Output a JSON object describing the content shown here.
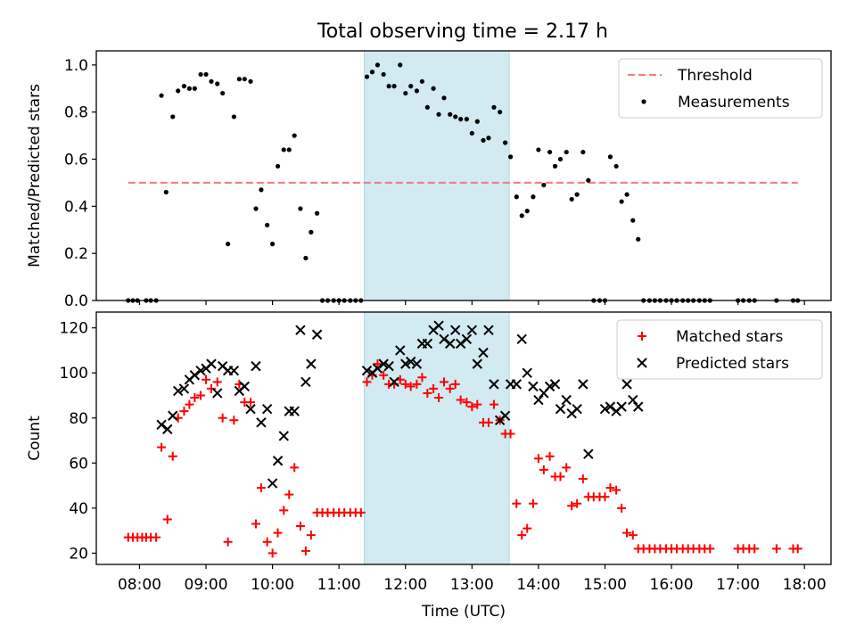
{
  "figure": {
    "title": "Total observing time = 2.17 h"
  },
  "colors": {
    "threshold": "#f08080",
    "measurements": "#000000",
    "matched": "#ff0000",
    "predicted": "#000000",
    "span_fill": "#add8e6"
  },
  "chart_data": [
    {
      "type": "scatter",
      "panel": "top",
      "ylabel": "Matched/Predicted stars",
      "xlabel": "",
      "xlim": [
        7.35,
        18.4
      ],
      "ylim": [
        0.0,
        1.06
      ],
      "yticks": [
        0.0,
        0.2,
        0.4,
        0.6,
        0.8,
        1.0
      ],
      "ytick_labels": [
        "0.0",
        "0.2",
        "0.4",
        "0.6",
        "0.8",
        "1.0"
      ],
      "xticks": [
        8,
        9,
        10,
        11,
        12,
        13,
        14,
        15,
        16,
        17,
        18
      ],
      "xtick_labels": [],
      "highlight_span": [
        11.38,
        13.56
      ],
      "legend_placement": "top-right",
      "series": [
        {
          "name": "Threshold",
          "kind": "dashed-line",
          "x": [
            7.83,
            17.9
          ],
          "y": [
            0.5,
            0.5
          ]
        },
        {
          "name": "Measurements",
          "kind": "dot",
          "x": [
            7.83,
            7.9,
            7.97,
            8.1,
            8.17,
            8.25,
            8.33,
            8.4,
            8.5,
            8.58,
            8.67,
            8.75,
            8.83,
            8.92,
            9.0,
            9.08,
            9.17,
            9.25,
            9.33,
            9.42,
            9.5,
            9.58,
            9.67,
            9.75,
            9.83,
            9.92,
            10.0,
            10.08,
            10.17,
            10.25,
            10.33,
            10.42,
            10.5,
            10.58,
            10.67,
            10.75,
            10.83,
            10.92,
            11.0,
            11.08,
            11.17,
            11.25,
            11.33,
            11.42,
            11.5,
            11.58,
            11.67,
            11.75,
            11.83,
            11.92,
            12.0,
            12.08,
            12.17,
            12.25,
            12.33,
            12.42,
            12.5,
            12.58,
            12.67,
            12.75,
            12.83,
            12.92,
            13.0,
            13.08,
            13.17,
            13.25,
            13.33,
            13.42,
            13.5,
            13.58,
            13.67,
            13.75,
            13.83,
            13.92,
            14.0,
            14.08,
            14.17,
            14.25,
            14.33,
            14.42,
            14.5,
            14.58,
            14.67,
            14.75,
            14.83,
            14.92,
            15.0,
            15.08,
            15.17,
            15.25,
            15.33,
            15.42,
            15.5,
            15.58,
            15.67,
            15.75,
            15.83,
            15.92,
            16.0,
            16.08,
            16.17,
            16.25,
            16.33,
            16.42,
            16.5,
            16.58,
            17.0,
            17.08,
            17.17,
            17.25,
            17.58,
            17.83,
            17.9
          ],
          "y": [
            0.0,
            0.0,
            0.0,
            0.0,
            0.0,
            0.0,
            0.87,
            0.46,
            0.78,
            0.89,
            0.91,
            0.9,
            0.9,
            0.96,
            0.96,
            0.93,
            0.92,
            0.88,
            0.24,
            0.78,
            0.94,
            0.94,
            0.93,
            0.39,
            0.47,
            0.32,
            0.24,
            0.57,
            0.64,
            0.64,
            0.7,
            0.39,
            0.18,
            0.29,
            0.37,
            0.0,
            0.0,
            0.0,
            0.0,
            0.0,
            0.0,
            0.0,
            0.0,
            0.95,
            0.97,
            1.0,
            0.96,
            0.91,
            0.91,
            1.0,
            0.88,
            0.91,
            0.89,
            0.93,
            0.82,
            0.9,
            0.79,
            0.86,
            0.79,
            0.78,
            0.77,
            0.77,
            0.71,
            0.76,
            0.68,
            0.69,
            0.82,
            0.8,
            0.67,
            0.61,
            0.44,
            0.36,
            0.38,
            0.44,
            0.64,
            0.49,
            0.63,
            0.57,
            0.6,
            0.63,
            0.43,
            0.45,
            0.63,
            0.51,
            0.0,
            0.0,
            0.0,
            0.61,
            0.57,
            0.42,
            0.45,
            0.34,
            0.26,
            0.0,
            0.0,
            0.0,
            0.0,
            0.0,
            0.0,
            0.0,
            0.0,
            0.0,
            0.0,
            0.0,
            0.0,
            0.0,
            0.0,
            0.0,
            0.0,
            0.0,
            0.0,
            0.0,
            0.0
          ]
        }
      ]
    },
    {
      "type": "scatter",
      "panel": "bottom",
      "ylabel": "Count",
      "xlabel": "Time (UTC)",
      "xlim": [
        7.35,
        18.4
      ],
      "ylim": [
        15,
        127
      ],
      "yticks": [
        20,
        40,
        60,
        80,
        100,
        120
      ],
      "ytick_labels": [
        "20",
        "40",
        "60",
        "80",
        "100",
        "120"
      ],
      "xticks": [
        8,
        9,
        10,
        11,
        12,
        13,
        14,
        15,
        16,
        17,
        18
      ],
      "xtick_labels": [
        "08:00",
        "09:00",
        "10:00",
        "11:00",
        "12:00",
        "13:00",
        "14:00",
        "15:00",
        "16:00",
        "17:00",
        "18:00"
      ],
      "highlight_span": [
        11.38,
        13.56
      ],
      "legend_placement": "top-right",
      "series": [
        {
          "name": "Matched stars",
          "kind": "plus",
          "x": [
            7.83,
            7.9,
            7.97,
            8.04,
            8.1,
            8.17,
            8.25,
            8.33,
            8.42,
            8.5,
            8.58,
            8.67,
            8.75,
            8.83,
            8.92,
            9.0,
            9.08,
            9.17,
            9.25,
            9.33,
            9.42,
            9.5,
            9.58,
            9.67,
            9.75,
            9.83,
            9.92,
            10.0,
            10.08,
            10.17,
            10.25,
            10.33,
            10.42,
            10.5,
            10.58,
            10.67,
            10.75,
            10.83,
            10.92,
            11.0,
            11.08,
            11.17,
            11.25,
            11.33,
            11.42,
            11.5,
            11.58,
            11.67,
            11.75,
            11.83,
            11.92,
            12.0,
            12.08,
            12.17,
            12.25,
            12.33,
            12.42,
            12.5,
            12.58,
            12.67,
            12.75,
            12.83,
            12.92,
            13.0,
            13.08,
            13.17,
            13.25,
            13.33,
            13.42,
            13.5,
            13.58,
            13.67,
            13.75,
            13.83,
            13.92,
            14.0,
            14.08,
            14.17,
            14.25,
            14.33,
            14.42,
            14.5,
            14.58,
            14.67,
            14.75,
            14.83,
            14.92,
            15.0,
            15.08,
            15.17,
            15.25,
            15.33,
            15.42,
            15.5,
            15.58,
            15.67,
            15.75,
            15.83,
            15.92,
            16.0,
            16.08,
            16.17,
            16.25,
            16.33,
            16.42,
            16.5,
            16.58,
            17.0,
            17.08,
            17.17,
            17.25,
            17.58,
            17.83,
            17.9
          ],
          "y": [
            27,
            27,
            27,
            27,
            27,
            27,
            27,
            67,
            35,
            63,
            80,
            83,
            86,
            89,
            90,
            97,
            93,
            96,
            80,
            25,
            79,
            95,
            87,
            87,
            33,
            49,
            25,
            20,
            29,
            39,
            46,
            58,
            32,
            21,
            28,
            38,
            38,
            38,
            38,
            38,
            38,
            38,
            38,
            38,
            96,
            99,
            104,
            99,
            95,
            95,
            97,
            95,
            94,
            95,
            98,
            91,
            93,
            89,
            96,
            93,
            95,
            88,
            87,
            85,
            86,
            78,
            78,
            86,
            79,
            73,
            73,
            42,
            28,
            31,
            42,
            62,
            57,
            63,
            54,
            54,
            58,
            41,
            42,
            53,
            45,
            45,
            45,
            45,
            49,
            48,
            40,
            29,
            28,
            22,
            22,
            22,
            22,
            22,
            22,
            22,
            22,
            22,
            22,
            22,
            22,
            22,
            22,
            22,
            22,
            22,
            22,
            22,
            22,
            22
          ]
        },
        {
          "name": "Predicted stars",
          "kind": "x",
          "x": [
            8.33,
            8.42,
            8.5,
            8.58,
            8.67,
            8.75,
            8.83,
            8.92,
            9.0,
            9.08,
            9.17,
            9.25,
            9.33,
            9.42,
            9.5,
            9.58,
            9.67,
            9.75,
            9.83,
            9.92,
            10.0,
            10.08,
            10.17,
            10.25,
            10.33,
            10.42,
            10.5,
            10.58,
            10.67,
            11.42,
            11.5,
            11.58,
            11.67,
            11.75,
            11.83,
            11.92,
            12.0,
            12.08,
            12.17,
            12.25,
            12.33,
            12.42,
            12.5,
            12.58,
            12.67,
            12.75,
            12.83,
            12.92,
            13.0,
            13.08,
            13.17,
            13.25,
            13.33,
            13.42,
            13.5,
            13.58,
            13.67,
            13.75,
            13.83,
            13.92,
            14.0,
            14.08,
            14.17,
            14.25,
            14.33,
            14.42,
            14.5,
            14.58,
            14.67,
            14.75,
            15.0,
            15.08,
            15.17,
            15.25,
            15.33,
            15.42,
            15.5
          ],
          "y": [
            77,
            75,
            81,
            92,
            93,
            97,
            99,
            101,
            102,
            104,
            91,
            103,
            101,
            101,
            92,
            94,
            84,
            103,
            78,
            84,
            51,
            61,
            72,
            83,
            83,
            119,
            96,
            104,
            117,
            101,
            100,
            102,
            104,
            103,
            96,
            110,
            104,
            105,
            104,
            113,
            113,
            119,
            121,
            115,
            113,
            119,
            113,
            115,
            119,
            104,
            109,
            119,
            95,
            79,
            81,
            95,
            95,
            115,
            100,
            94,
            88,
            91,
            94,
            95,
            84,
            88,
            82,
            84,
            95,
            64,
            84,
            85,
            83,
            85,
            95,
            88,
            85
          ]
        }
      ]
    }
  ]
}
